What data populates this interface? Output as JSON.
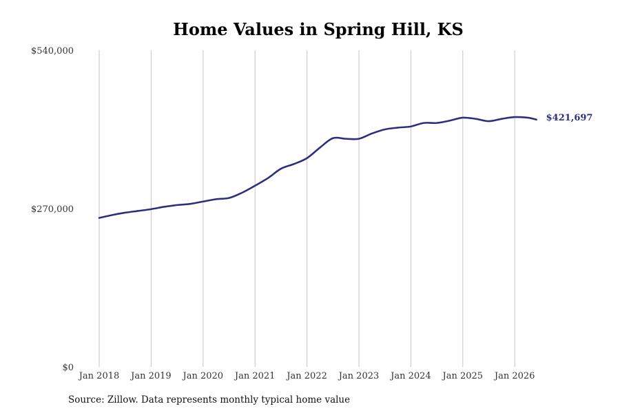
{
  "chart_data": {
    "type": "line",
    "title": "Home Values in Spring Hill, KS",
    "xlabel": "",
    "ylabel": "",
    "x_ticks": [
      "Jan 2018",
      "Jan 2019",
      "Jan 2020",
      "Jan 2021",
      "Jan 2022",
      "Jan 2023",
      "Jan 2024",
      "Jan 2025",
      "Jan 2026"
    ],
    "y_ticks": [
      "$0",
      "$270,000",
      "$540,000"
    ],
    "y_tick_values": [
      0,
      270000,
      540000
    ],
    "ylim": [
      0,
      540000
    ],
    "xlim": [
      "2017-11",
      "2026-12"
    ],
    "grid": {
      "vertical": true,
      "horizontal": false
    },
    "legend": "none",
    "series": [
      {
        "color": "#2e2e7f",
        "points": [
          {
            "x": "2018-01",
            "y": 254000
          },
          {
            "x": "2018-04",
            "y": 259000
          },
          {
            "x": "2018-07",
            "y": 263000
          },
          {
            "x": "2018-10",
            "y": 266000
          },
          {
            "x": "2019-01",
            "y": 269000
          },
          {
            "x": "2019-04",
            "y": 273000
          },
          {
            "x": "2019-07",
            "y": 276000
          },
          {
            "x": "2019-10",
            "y": 278000
          },
          {
            "x": "2020-01",
            "y": 282000
          },
          {
            "x": "2020-04",
            "y": 286000
          },
          {
            "x": "2020-07",
            "y": 288000
          },
          {
            "x": "2020-10",
            "y": 297000
          },
          {
            "x": "2021-01",
            "y": 309000
          },
          {
            "x": "2021-04",
            "y": 322000
          },
          {
            "x": "2021-07",
            "y": 338000
          },
          {
            "x": "2021-10",
            "y": 346000
          },
          {
            "x": "2022-01",
            "y": 356000
          },
          {
            "x": "2022-04",
            "y": 374000
          },
          {
            "x": "2022-07",
            "y": 390000
          },
          {
            "x": "2022-10",
            "y": 389000
          },
          {
            "x": "2023-01",
            "y": 389000
          },
          {
            "x": "2023-04",
            "y": 398000
          },
          {
            "x": "2023-07",
            "y": 405000
          },
          {
            "x": "2023-10",
            "y": 408000
          },
          {
            "x": "2024-01",
            "y": 410000
          },
          {
            "x": "2024-04",
            "y": 416000
          },
          {
            "x": "2024-07",
            "y": 416000
          },
          {
            "x": "2024-10",
            "y": 420000
          },
          {
            "x": "2025-01",
            "y": 425000
          },
          {
            "x": "2025-04",
            "y": 423000
          },
          {
            "x": "2025-07",
            "y": 419000
          },
          {
            "x": "2025-10",
            "y": 423000
          },
          {
            "x": "2026-01",
            "y": 426000
          },
          {
            "x": "2026-04",
            "y": 425000
          },
          {
            "x": "2026-06",
            "y": 421697
          }
        ]
      }
    ],
    "end_label": "$421,697"
  },
  "source_note": "Source: Zillow. Data represents monthly typical home value"
}
